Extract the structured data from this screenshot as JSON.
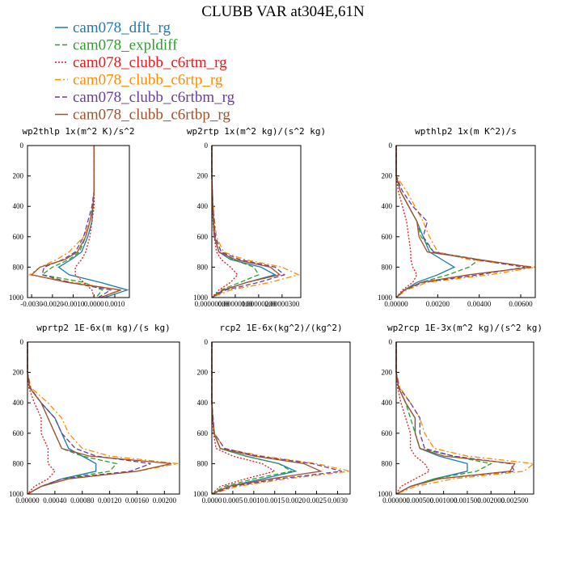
{
  "title": "CLUBB VAR at304E,61N",
  "legend": [
    {
      "name": "cam078_dflt_rg",
      "color": "#1f77b4",
      "dash": "solid"
    },
    {
      "name": "cam078_expldiff",
      "color": "#2ca02c",
      "dash": "dashed"
    },
    {
      "name": "cam078_clubb_c6rtm_rg",
      "color": "#e41a1c",
      "dash": "dotted"
    },
    {
      "name": "cam078_clubb_c6rtp_rg",
      "color": "#ff8c00",
      "dash": "dashdot"
    },
    {
      "name": "cam078_clubb_c6rtbm_rg",
      "color": "#6a3d9a",
      "dash": "dashed"
    },
    {
      "name": "cam078_clubb_c6rtbp_rg",
      "color": "#a0522d",
      "dash": "solid"
    }
  ],
  "chart_data": [
    {
      "type": "line",
      "title": "wp2thlp   1x(m^2 K)/s^2",
      "y": [
        0,
        200,
        300,
        400,
        500,
        600,
        700,
        750,
        800,
        850,
        900,
        950,
        1000
      ],
      "ylim": [
        0,
        1000
      ],
      "y_reversed": true,
      "yticks": [
        0,
        200,
        400,
        600,
        800,
        1000
      ],
      "xlim": [
        -0.0032,
        0.0017
      ],
      "xticks": [
        {
          "value": -0.003,
          "label": "-0.0030"
        },
        {
          "value": -0.002,
          "label": "-0.0020"
        },
        {
          "value": -0.001,
          "label": "-0.0010"
        },
        {
          "value": 0,
          "label": "0.0000"
        },
        {
          "value": 0.001,
          "label": "0.0010"
        }
      ],
      "series": [
        {
          "values": [
            0,
            0,
            0,
            -5e-05,
            -0.0001,
            -0.0003,
            -0.0006,
            -0.0011,
            -0.0017,
            -0.0012,
            0.0003,
            0.0016,
            0.0005
          ]
        },
        {
          "values": [
            0,
            0,
            0,
            -5e-05,
            -0.0002,
            -0.0004,
            -0.0007,
            -0.0012,
            -0.002,
            -0.0025,
            -0.0005,
            0.0004,
            0.0001
          ]
        },
        {
          "values": [
            0,
            0,
            0,
            0,
            -0.0001,
            -0.0002,
            -0.0004,
            -0.0006,
            -0.0009,
            -0.0009,
            -0.0005,
            -0.0001,
            0
          ]
        },
        {
          "values": [
            0,
            0,
            0,
            -5e-05,
            -0.0002,
            -0.0005,
            -0.0012,
            -0.0018,
            -0.0026,
            -0.0031,
            -0.001,
            0.0012,
            0.0004
          ]
        },
        {
          "values": [
            0,
            0,
            0,
            -0.0001,
            -0.0003,
            -0.0005,
            -0.0009,
            -0.0015,
            -0.0024,
            -0.0025,
            -0.0012,
            0.0008,
            0.0002
          ]
        },
        {
          "values": [
            0,
            0,
            0,
            -5e-05,
            -0.0002,
            -0.0004,
            -0.0008,
            -0.0014,
            -0.0026,
            -0.003,
            -0.0013,
            0.0013,
            0.0003
          ]
        }
      ]
    },
    {
      "type": "line",
      "title": "wp2rtp   1x(m^2 kg)/(s^2 kg)",
      "y": [
        0,
        200,
        300,
        400,
        500,
        600,
        700,
        750,
        800,
        850,
        900,
        950,
        1000
      ],
      "ylim": [
        0,
        1000
      ],
      "y_reversed": true,
      "yticks": [
        0,
        200,
        400,
        600,
        800,
        1000
      ],
      "xlim": [
        0,
        3.8e-06
      ],
      "xticks": [
        {
          "value": 0,
          "label": "0.00000000"
        },
        {
          "value": 1e-06,
          "label": "0.00000100"
        },
        {
          "value": 2e-06,
          "label": "0.00000200"
        },
        {
          "value": 3e-06,
          "label": "0.00000300"
        }
      ],
      "series": [
        {
          "values": [
            0,
            0,
            2e-08,
            3e-08,
            6e-08,
            1e-07,
            3e-07,
            8e-07,
            2.1e-06,
            2.7e-06,
            1.5e-06,
            5e-07,
            0
          ]
        },
        {
          "values": [
            0,
            0,
            2e-08,
            4e-08,
            8e-08,
            1.5e-07,
            4e-07,
            9e-07,
            1.8e-06,
            2e-06,
            1.2e-06,
            4e-07,
            0
          ]
        },
        {
          "values": [
            0,
            0,
            1e-08,
            2e-08,
            5e-08,
            1e-07,
            2e-07,
            4e-07,
            8e-07,
            1.1e-06,
            8e-07,
            3e-07,
            0
          ]
        },
        {
          "values": [
            0,
            0,
            3e-08,
            6e-08,
            1.2e-07,
            2e-07,
            5e-07,
            1.4e-06,
            3e-06,
            3.7e-06,
            2.5e-06,
            8e-07,
            0
          ]
        },
        {
          "values": [
            0,
            0,
            2e-08,
            5e-08,
            1e-07,
            1.5e-07,
            4e-07,
            1.2e-06,
            2.7e-06,
            3.1e-06,
            2e-06,
            6e-07,
            0
          ]
        },
        {
          "values": [
            0,
            0,
            2e-08,
            4e-08,
            8e-08,
            1.2e-07,
            3e-07,
            1e-06,
            2.5e-06,
            2.9e-06,
            1.5e-06,
            5e-07,
            0
          ]
        }
      ]
    },
    {
      "type": "line",
      "title": "wpthlp2   1x(m K^2)/s",
      "y": [
        0,
        200,
        300,
        400,
        500,
        600,
        700,
        750,
        800,
        850,
        900,
        950,
        1000
      ],
      "ylim": [
        0,
        1000
      ],
      "y_reversed": true,
      "yticks": [
        0,
        200,
        400,
        600,
        800,
        1000
      ],
      "xlim": [
        0,
        0.0067
      ],
      "xticks": [
        {
          "value": 0,
          "label": "0.00000"
        },
        {
          "value": 0.002,
          "label": "0.00200"
        },
        {
          "value": 0.004,
          "label": "0.00400"
        },
        {
          "value": 0.006,
          "label": "0.00600"
        }
      ],
      "series": [
        {
          "values": [
            0,
            0,
            0.0002,
            0.0006,
            0.001,
            0.0013,
            0.0016,
            0.0022,
            0.0028,
            0.002,
            0.001,
            0.0004,
            0
          ]
        },
        {
          "values": [
            0,
            0,
            0.0002,
            0.0006,
            0.001,
            0.0012,
            0.0018,
            0.004,
            0.0035,
            0.0025,
            0.0012,
            0.0004,
            0
          ]
        },
        {
          "values": [
            0,
            0,
            0.0001,
            0.0003,
            0.0005,
            0.0006,
            0.0007,
            0.0007,
            0.0008,
            0.001,
            0.0008,
            0.0003,
            0
          ]
        },
        {
          "values": [
            0,
            0,
            0.0005,
            0.0009,
            0.0013,
            0.0016,
            0.002,
            0.0035,
            0.0067,
            0.0045,
            0.0015,
            0.0005,
            0
          ]
        },
        {
          "values": [
            0,
            0,
            0.0003,
            0.0008,
            0.0015,
            0.0013,
            0.0018,
            0.0038,
            0.0062,
            0.004,
            0.0013,
            0.0004,
            0
          ]
        },
        {
          "values": [
            0,
            0,
            0.0002,
            0.0006,
            0.001,
            0.0011,
            0.0015,
            0.004,
            0.0065,
            0.0035,
            0.0012,
            0.0004,
            0
          ]
        }
      ]
    },
    {
      "type": "line",
      "title": "wprtp2   1E-6x(m kg)/(s kg)",
      "y": [
        0,
        200,
        300,
        400,
        500,
        600,
        700,
        750,
        800,
        850,
        900,
        950,
        1000
      ],
      "ylim": [
        0,
        1000
      ],
      "y_reversed": true,
      "yticks": [
        0,
        200,
        400,
        600,
        800,
        1000
      ],
      "xlim": [
        0,
        0.00222
      ],
      "xticks": [
        {
          "value": 0,
          "label": "0.00000"
        },
        {
          "value": 0.0004,
          "label": "0.00040"
        },
        {
          "value": 0.0008,
          "label": "0.00080"
        },
        {
          "value": 0.0012,
          "label": "0.00120"
        },
        {
          "value": 0.0016,
          "label": "0.00160"
        },
        {
          "value": 0.002,
          "label": "0.00200"
        }
      ],
      "series": [
        {
          "values": [
            0,
            0,
            3e-05,
            0.0002,
            0.0004,
            0.0005,
            0.0006,
            0.0008,
            0.001,
            0.001,
            0.0005,
            0.0002,
            0
          ]
        },
        {
          "values": [
            0,
            0,
            3e-05,
            0.0002,
            0.0003,
            0.0004,
            0.0005,
            0.0008,
            0.0013,
            0.0012,
            0.0005,
            0.0002,
            0
          ]
        },
        {
          "values": [
            0,
            0,
            2e-05,
            0.0001,
            0.0002,
            0.0002,
            0.0003,
            0.0003,
            0.0003,
            0.0004,
            0.0003,
            0.0001,
            0
          ]
        },
        {
          "values": [
            0,
            0,
            5e-05,
            0.0003,
            0.0005,
            0.0006,
            0.0008,
            0.0012,
            0.0022,
            0.0016,
            0.0006,
            0.0002,
            0
          ]
        },
        {
          "values": [
            0,
            0,
            4e-05,
            0.0002,
            0.0004,
            0.0005,
            0.0007,
            0.001,
            0.0018,
            0.0015,
            0.0005,
            0.0002,
            0
          ]
        },
        {
          "values": [
            0,
            0,
            3e-05,
            0.0002,
            0.0003,
            0.0004,
            0.0005,
            0.0009,
            0.0021,
            0.0016,
            0.0006,
            0.0002,
            0
          ]
        }
      ]
    },
    {
      "type": "line",
      "title": "rcp2   1E-6x(kg^2)/(kg^2)",
      "y": [
        0,
        200,
        300,
        400,
        500,
        600,
        700,
        750,
        800,
        850,
        900,
        950,
        1000
      ],
      "ylim": [
        0,
        1000
      ],
      "y_reversed": true,
      "yticks": [
        0,
        200,
        400,
        600,
        800,
        1000
      ],
      "xlim": [
        0,
        0.0033
      ],
      "xticks": [
        {
          "value": 0,
          "label": "0.0000"
        },
        {
          "value": 0.0005,
          "label": "0.0005"
        },
        {
          "value": 0.001,
          "label": "0.0010"
        },
        {
          "value": 0.0015,
          "label": "0.0015"
        },
        {
          "value": 0.002,
          "label": "0.0020"
        },
        {
          "value": 0.0025,
          "label": "0.0025"
        },
        {
          "value": 0.003,
          "label": "0.0030"
        }
      ],
      "series": [
        {
          "values": [
            0,
            0,
            0,
            0,
            2e-05,
            5e-05,
            0.0002,
            0.0008,
            0.0016,
            0.002,
            0.0012,
            0.0004,
            0
          ]
        },
        {
          "values": [
            0,
            0,
            0,
            0,
            2e-05,
            5e-05,
            0.0002,
            0.0008,
            0.0016,
            0.0019,
            0.001,
            0.0003,
            0
          ]
        },
        {
          "values": [
            0,
            0,
            0,
            0,
            1e-05,
            4e-05,
            0.0001,
            0.0005,
            0.0012,
            0.0015,
            0.0008,
            0.0002,
            0
          ]
        },
        {
          "values": [
            0,
            0,
            0,
            0,
            3e-05,
            6e-05,
            0.0003,
            0.0012,
            0.0025,
            0.0033,
            0.0018,
            0.0006,
            0
          ]
        },
        {
          "values": [
            0,
            0,
            0,
            0,
            3e-05,
            6e-05,
            0.0003,
            0.0011,
            0.0024,
            0.0031,
            0.0016,
            0.0005,
            0
          ]
        },
        {
          "values": [
            0,
            0,
            0,
            0,
            2e-05,
            5e-05,
            0.0002,
            0.001,
            0.0022,
            0.0026,
            0.0014,
            0.0004,
            0
          ]
        }
      ]
    },
    {
      "type": "line",
      "title": "wp2rcp   1E-3x(m^2 kg)/(s^2 kg)",
      "y": [
        0,
        200,
        300,
        400,
        500,
        600,
        700,
        750,
        800,
        850,
        900,
        950,
        1000
      ],
      "ylim": [
        0,
        1000
      ],
      "y_reversed": true,
      "yticks": [
        0,
        200,
        400,
        600,
        800,
        1000
      ],
      "xlim": [
        0,
        0.0029
      ],
      "xticks": [
        {
          "value": 0,
          "label": "0.000000"
        },
        {
          "value": 0.0005,
          "label": "0.000500"
        },
        {
          "value": 0.001,
          "label": "0.001000"
        },
        {
          "value": 0.0015,
          "label": "0.001500"
        },
        {
          "value": 0.002,
          "label": "0.002000"
        },
        {
          "value": 0.0025,
          "label": "0.002500"
        }
      ],
      "series": [
        {
          "values": [
            0,
            0,
            5e-05,
            0.0002,
            0.0004,
            0.0004,
            0.0005,
            0.0009,
            0.0015,
            0.0015,
            0.0008,
            0.0003,
            0
          ]
        },
        {
          "values": [
            0,
            0,
            5e-05,
            0.0002,
            0.0003,
            0.0004,
            0.0005,
            0.0012,
            0.002,
            0.0017,
            0.0008,
            0.0003,
            0
          ]
        },
        {
          "values": [
            0,
            0,
            3e-05,
            0.0001,
            0.0002,
            0.0003,
            0.0003,
            0.0004,
            0.0006,
            0.0007,
            0.0004,
            0.0001,
            0
          ]
        },
        {
          "values": [
            0,
            0,
            8e-05,
            0.0003,
            0.0005,
            0.0006,
            0.0008,
            0.0015,
            0.0029,
            0.0027,
            0.0012,
            0.0004,
            0
          ]
        },
        {
          "values": [
            0,
            0,
            6e-05,
            0.0003,
            0.0005,
            0.0005,
            0.0006,
            0.0012,
            0.0024,
            0.0025,
            0.0009,
            0.0003,
            0
          ]
        },
        {
          "values": [
            0,
            0,
            5e-05,
            0.0002,
            0.0004,
            0.0004,
            0.0005,
            0.001,
            0.0025,
            0.0024,
            0.0009,
            0.0003,
            0
          ]
        }
      ]
    }
  ]
}
